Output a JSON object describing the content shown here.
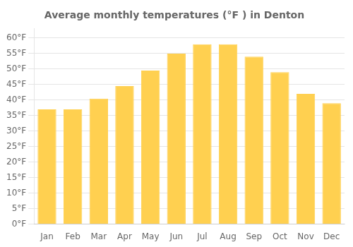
{
  "chart_data": {
    "type": "bar",
    "title": "Average monthly temperatures (°F ) in Denton",
    "categories": [
      "Jan",
      "Feb",
      "Mar",
      "Apr",
      "May",
      "Jun",
      "Jul",
      "Aug",
      "Sep",
      "Oct",
      "Nov",
      "Dec"
    ],
    "values": [
      37,
      37,
      40.5,
      44.5,
      49.5,
      55,
      58,
      58,
      54,
      49,
      42,
      39
    ],
    "color": "#FFD050",
    "ylim": [
      0,
      63
    ],
    "yticks": [
      {
        "value": 0,
        "label": "0°F"
      },
      {
        "value": 5,
        "label": "5°F"
      },
      {
        "value": 10,
        "label": "10°F"
      },
      {
        "value": 15,
        "label": "15°F"
      },
      {
        "value": 20,
        "label": "20°F"
      },
      {
        "value": 25,
        "label": "25°F"
      },
      {
        "value": 30,
        "label": "30°F"
      },
      {
        "value": 35,
        "label": "35°F"
      },
      {
        "value": 40,
        "label": "40°F"
      },
      {
        "value": 45,
        "label": "45°F"
      },
      {
        "value": 50,
        "label": "50°F"
      },
      {
        "value": 55,
        "label": "55°F"
      },
      {
        "value": 60,
        "label": "60°F"
      }
    ],
    "grid": true
  }
}
